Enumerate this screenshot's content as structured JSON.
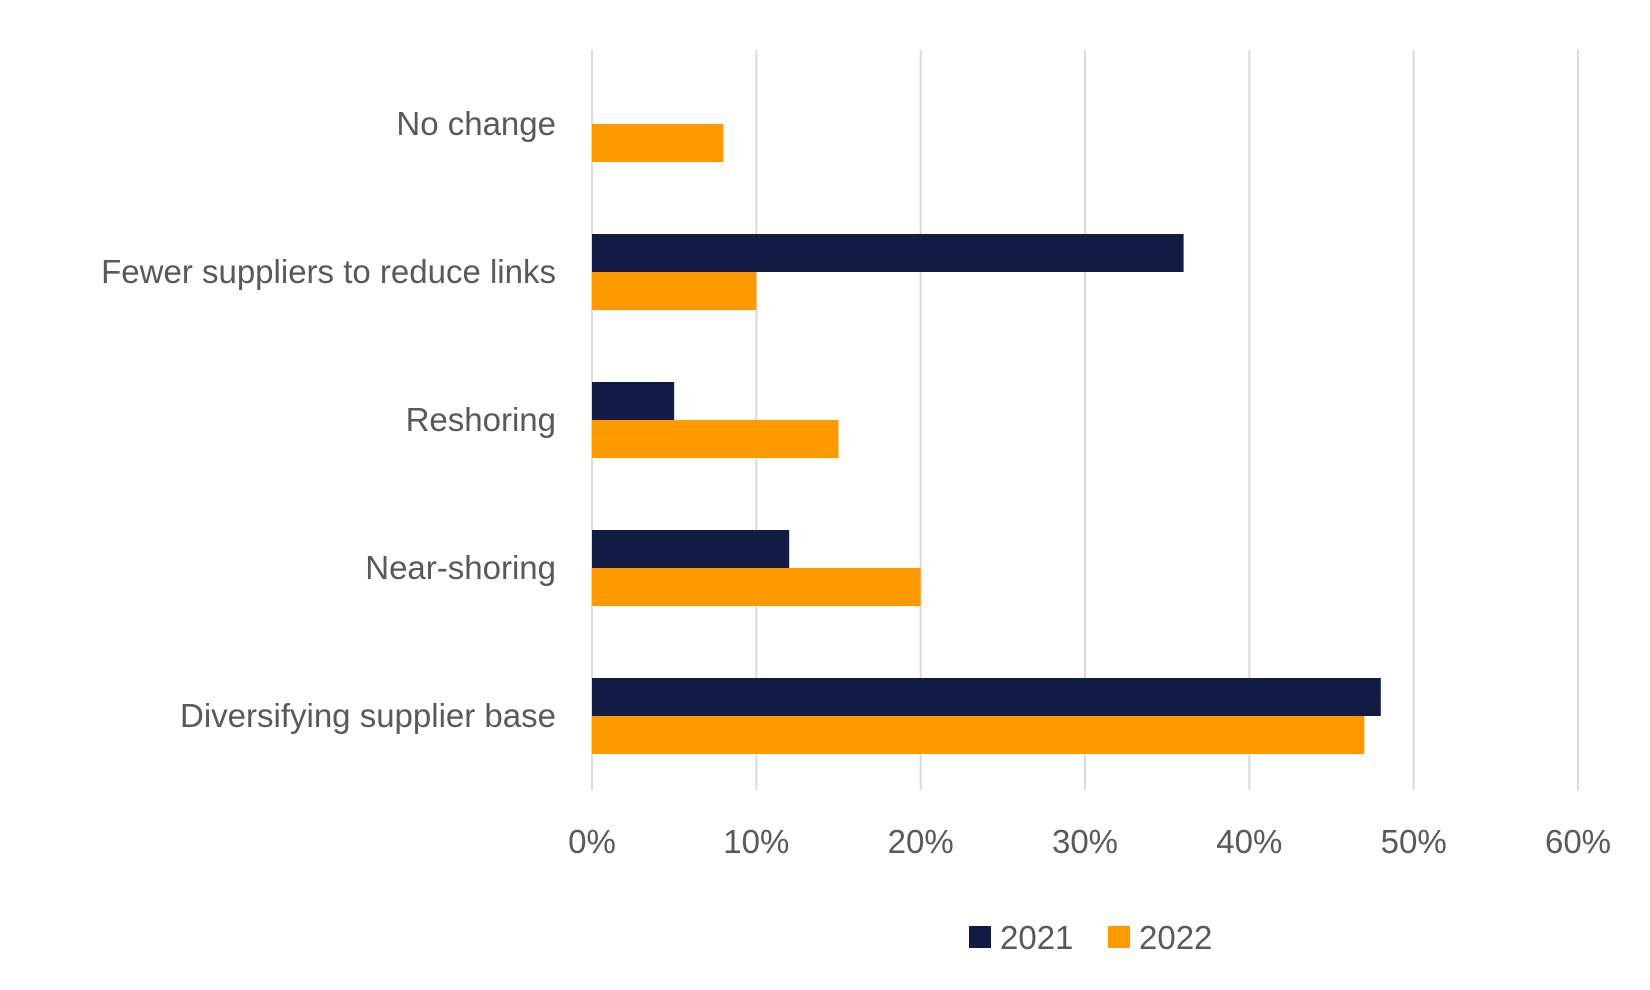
{
  "chart_data": {
    "type": "bar",
    "orientation": "horizontal",
    "title": "",
    "xlabel": "",
    "ylabel": "",
    "categories": [
      "No change",
      "Fewer suppliers to reduce links",
      "Reshoring",
      "Near-shoring",
      "Diversifying supplier base"
    ],
    "series": [
      {
        "name": "2021",
        "color": "#121c44",
        "values": [
          null,
          36,
          5,
          12,
          48
        ]
      },
      {
        "name": "2022",
        "color": "#ff9900",
        "values": [
          8,
          10,
          15,
          20,
          47
        ]
      }
    ],
    "xlim": [
      0,
      60
    ],
    "xticks": [
      "0%",
      "10%",
      "20%",
      "30%",
      "40%",
      "50%",
      "60%"
    ],
    "grid": true,
    "legend_position": "bottom"
  }
}
